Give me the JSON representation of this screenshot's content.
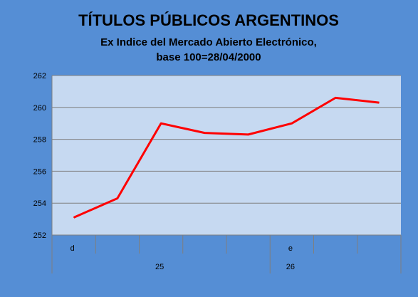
{
  "chart_data": {
    "type": "line",
    "title": "TÍTULOS PÚBLICOS ARGENTINOS",
    "subtitle_line1": "Ex Indice del Mercado Abierto Electrónico,",
    "subtitle_line2": "base 100=28/04/2000",
    "xlabel": "",
    "ylabel": "",
    "ylim": [
      252,
      262
    ],
    "yticks": [
      252,
      254,
      256,
      258,
      260,
      262
    ],
    "ytick_labels": [
      "252",
      "254",
      "256",
      "258",
      "260",
      "262"
    ],
    "grid": true,
    "legend": "none",
    "x_category_count": 8,
    "x_level1_labels": [
      {
        "label": "d",
        "index": 0
      },
      {
        "label": "e",
        "index": 5
      }
    ],
    "x_level2_labels": [
      {
        "label": "25",
        "index": 2
      },
      {
        "label": "26",
        "index": 5
      }
    ],
    "series": [
      {
        "values": [
          253.1,
          254.3,
          259.0,
          258.4,
          258.3,
          259.0,
          260.6,
          260.3
        ],
        "color": "#ff0000"
      }
    ],
    "colors": {
      "background": "#558ed5",
      "plot_area": "#c6d9f1",
      "grid": "#7f7f7f",
      "line": "#ff0000"
    }
  }
}
